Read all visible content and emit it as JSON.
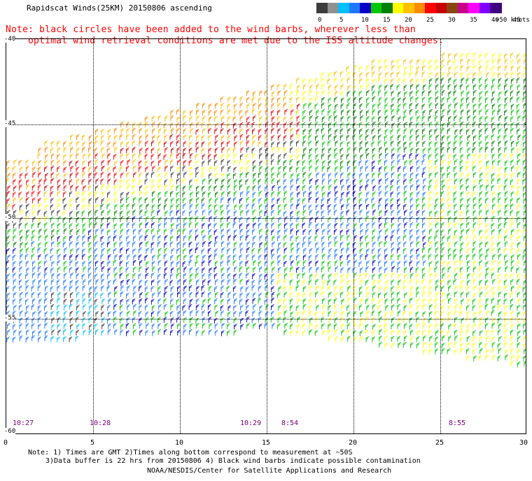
{
  "title": "Rapidscat Winds(25KM) 20150806 ascending",
  "note_lines": [
    "Note: black circles have been added to the wind barbs, wherever less than",
    "optimal wind retrieval conditions are met due to the ISS altitude changes."
  ],
  "color_scale": {
    "labels": [
      "0",
      "5",
      "10",
      "15",
      "20",
      "25",
      "30",
      "35",
      "40",
      "45",
      ">50 knots"
    ],
    "colors": [
      "#3c3c3c",
      "#909090",
      "#00bfff",
      "#1e78ff",
      "#0000c8",
      "#00c800",
      "#008000",
      "#ffff00",
      "#ffc000",
      "#ff8c00",
      "#ff0000",
      "#c80000",
      "#8b4513",
      "#c8008c",
      "#ff00ff",
      "#8000ff",
      "#400080"
    ]
  },
  "y_axis_labels": [
    "-40",
    "-45",
    "-50",
    "-55",
    "-60"
  ],
  "x_axis_labels": [
    "0",
    "5",
    "10",
    "15",
    "20",
    "25",
    "30"
  ],
  "time_labels": [
    "10:27",
    "10:28",
    "10:29",
    "8:54",
    "8:55"
  ],
  "footer_line1": "Note: 1) Times are GMT 2)Times along bottom correspond to measurement at ~50S",
  "footer_line2": "3)Data buffer is 22 hrs from 20150806 4) Black wind barbs indicate possible contamination",
  "credit": "NOAA/NESDIS/Center for Satellite Applications and Research"
}
